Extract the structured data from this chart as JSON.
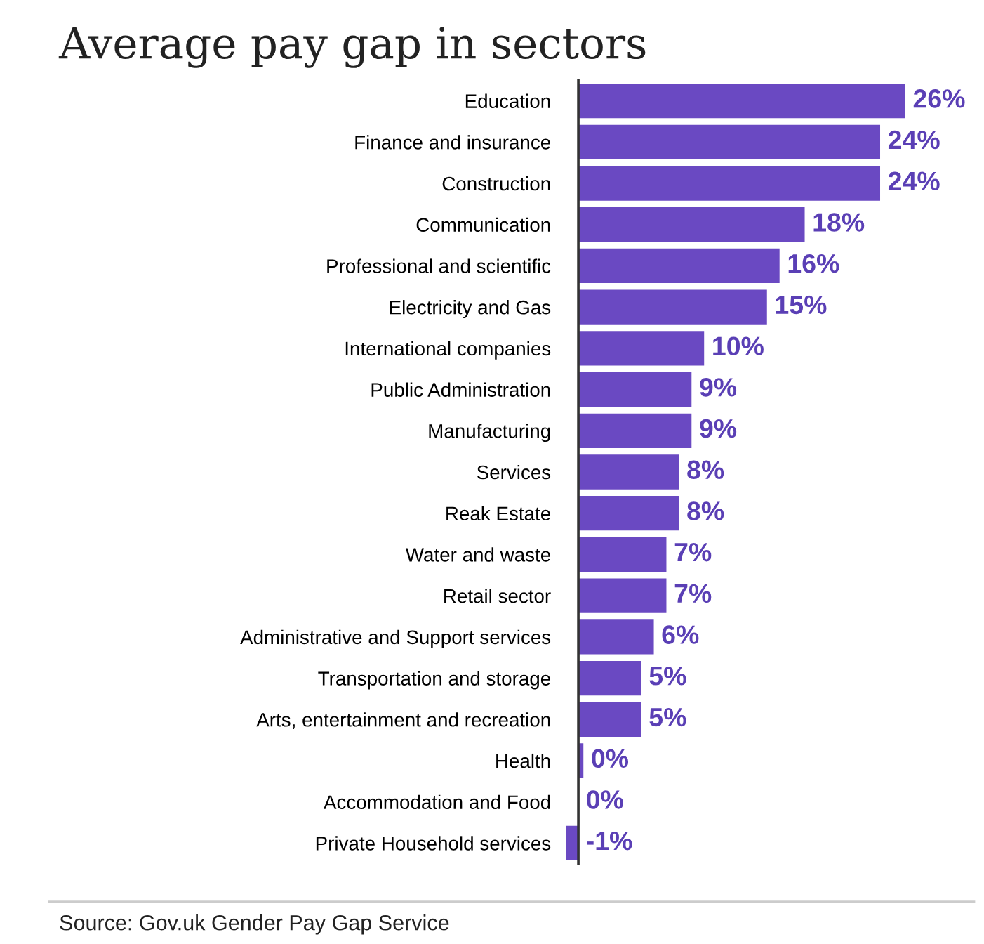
{
  "chart_data": {
    "type": "bar",
    "orientation": "horizontal",
    "title": "Average pay gap in sectors",
    "categories": [
      "Education",
      "Finance and insurance",
      "Construction",
      "Communication",
      "Professional and scientific",
      "Electricity and Gas",
      "International companies",
      "Public Administration",
      "Manufacturing",
      "Services",
      "Reak Estate",
      "Water and waste",
      "Retail sector",
      "Administrative and Support services",
      "Transportation and storage",
      "Arts, entertainment and recreation",
      "Health",
      "Accommodation and Food",
      "Private Household services"
    ],
    "values": [
      26,
      24,
      24,
      18,
      16,
      15,
      10,
      9,
      9,
      8,
      8,
      7,
      7,
      6,
      5,
      5,
      0.4,
      0,
      -1
    ],
    "value_labels": [
      "26%",
      "24%",
      "24%",
      "18%",
      "16%",
      "15%",
      "10%",
      "9%",
      "9%",
      "8%",
      "8%",
      "7%",
      "7%",
      "6%",
      "5%",
      "5%",
      "0%",
      "0%",
      "-1%"
    ],
    "color": "#6a49c2",
    "annotations": [
      "Source: Gov.uk Gender Pay Gap Service"
    ],
    "grid": false
  }
}
